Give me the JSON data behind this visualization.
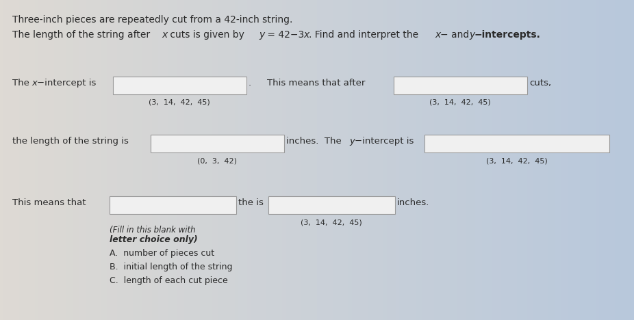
{
  "bg_color_left": "#e8e4e0",
  "bg_color_right": "#c8d4e4",
  "text_color": "#2a2a2a",
  "box_color": "#f0f0f0",
  "box_edge_color": "#999999",
  "title_line1": "Three-inch pieces are repeatedly cut from a 42-inch string.",
  "title_line2_plain": "The length of the string after ",
  "title_line2_x": "x",
  "title_line2_mid": " cuts is given by ",
  "title_line2_eq": "y",
  "title_line2_eq2": " = 42−3",
  "title_line2_x2": "x",
  "title_line2_end": ". Find and interpret the ",
  "title_line2_xd": "x",
  "title_line2_dash": "−",
  "title_line2_and": " and ",
  "title_line2_yd": "y",
  "title_line2_dash2": "−",
  "title_line2_intercepts": "intercepts.",
  "row1_left_prefix": "The ",
  "row1_left_x": "x",
  "row1_left_suffix": "−intercept is",
  "row1_left_hint": "(3,  14,  42,  45)",
  "row1_right_prefix": "This means that after",
  "row1_right_suffix": "cuts,",
  "row1_right_hint": "(3,  14,  42,  45)",
  "row2_left_prefix": "the length of the string is",
  "row2_left_hint": "(0,  3,  42)",
  "row2_mid": "inches.  The ",
  "row2_mid_y": "y",
  "row2_mid_suffix": "−intercept is",
  "row2_right_hint": "(3,  14,  42,  45)",
  "row3_left_prefix": "This means that",
  "row3_mid": "the is",
  "row3_right_suffix": "inches.",
  "row3_right_hint": "(3,  14,  42,  45)",
  "fill_hint1": "(Fill in this blank with",
  "fill_hint2": "letter choice only)",
  "choice_A": "A.  number of pieces cut",
  "choice_B": "B.  initial length of the string",
  "choice_C": "C.  length of each cut piece"
}
